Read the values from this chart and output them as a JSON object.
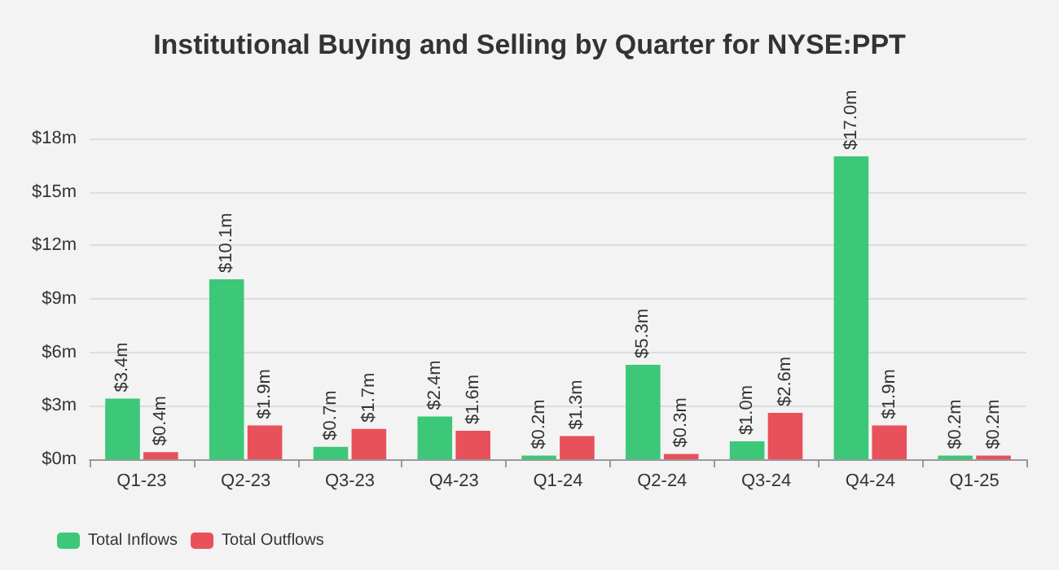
{
  "chart_data": {
    "type": "bar",
    "title": "Institutional Buying and Selling by Quarter for NYSE:PPT",
    "categories": [
      "Q1-23",
      "Q2-23",
      "Q3-23",
      "Q4-23",
      "Q1-24",
      "Q2-24",
      "Q3-24",
      "Q4-24",
      "Q1-25"
    ],
    "series": [
      {
        "name": "Total Inflows",
        "color": "#3cc878",
        "values": [
          3.4,
          10.1,
          0.7,
          2.4,
          0.2,
          5.3,
          1.0,
          17.0,
          0.2
        ],
        "value_labels": [
          "$3.4m",
          "$10.1m",
          "$0.7m",
          "$2.4m",
          "$0.2m",
          "$5.3m",
          "$1.0m",
          "$17.0m",
          "$0.2m"
        ]
      },
      {
        "name": "Total Outflows",
        "color": "#e8505b",
        "values": [
          0.4,
          1.9,
          1.7,
          1.6,
          1.3,
          0.3,
          2.6,
          1.9,
          0.2
        ],
        "value_labels": [
          "$0.4m",
          "$1.9m",
          "$1.7m",
          "$1.6m",
          "$1.3m",
          "$0.3m",
          "$2.6m",
          "$1.9m",
          "$0.2m"
        ]
      }
    ],
    "ylim": [
      0,
      18
    ],
    "yticks": [
      {
        "value": 0,
        "label": "$0m"
      },
      {
        "value": 3,
        "label": "$3m"
      },
      {
        "value": 6,
        "label": "$6m"
      },
      {
        "value": 9,
        "label": "$9m"
      },
      {
        "value": 12,
        "label": "$12m"
      },
      {
        "value": 15,
        "label": "$15m"
      },
      {
        "value": 18,
        "label": "$18m"
      }
    ],
    "grid": "y",
    "legend": "bottom left"
  }
}
